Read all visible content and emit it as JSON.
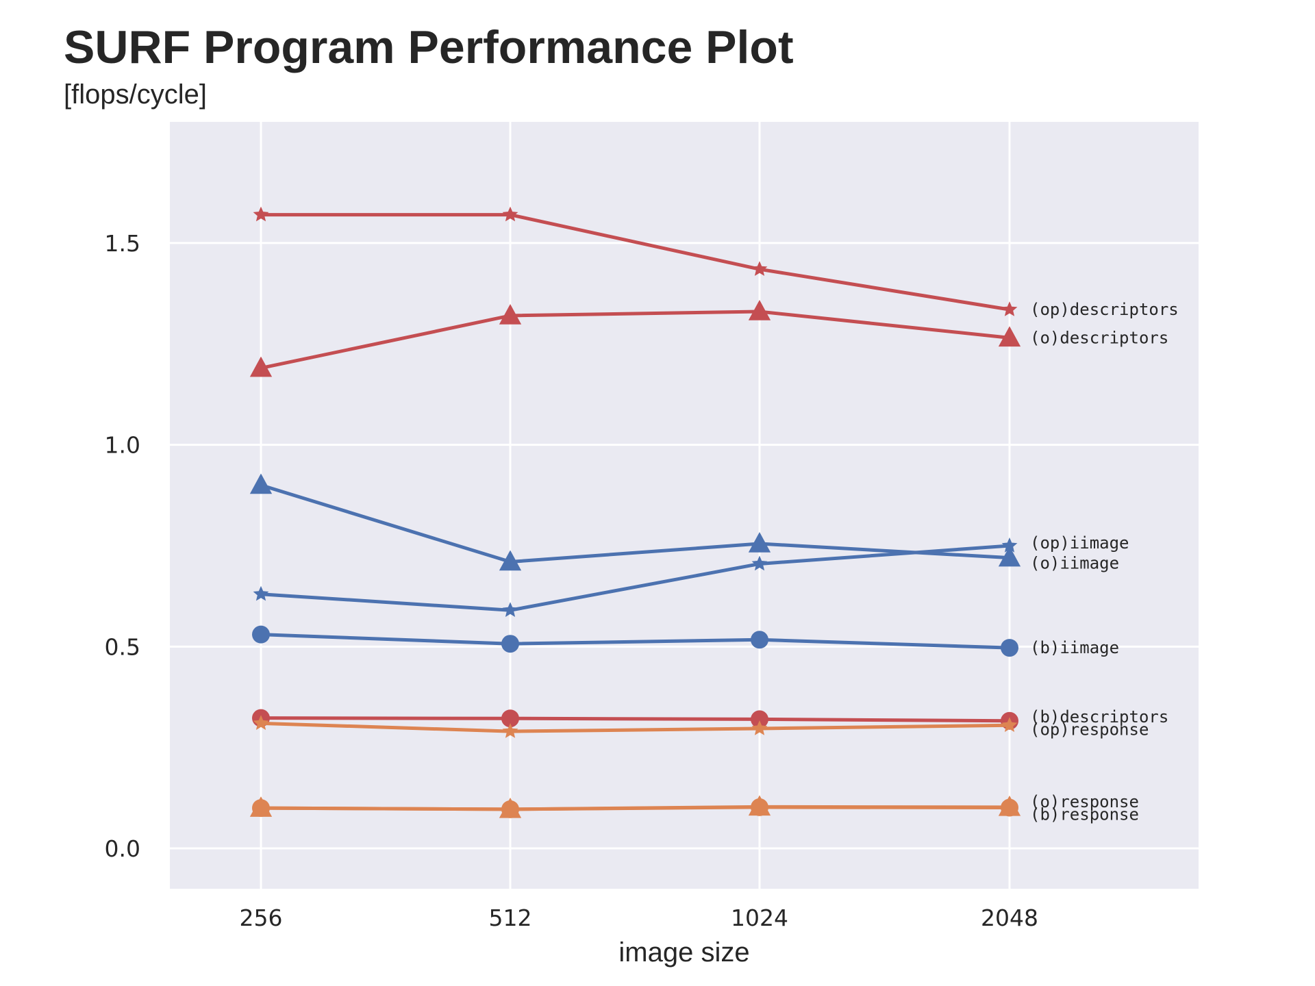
{
  "title": "SURF Program Performance Plot",
  "subtitle": "[flops/cycle]",
  "chart_data": {
    "type": "line",
    "x": [
      "256",
      "512",
      "1024",
      "2048"
    ],
    "xlabel": "image size",
    "ylabel": "",
    "ylim": [
      -0.1,
      1.8
    ],
    "yticks": [
      "0.0",
      "0.5",
      "1.0",
      "1.5"
    ],
    "grid": true,
    "legend": "none; series names printed at the right end of each line",
    "series": [
      {
        "name": "(op)descriptors",
        "color": "#c44e52",
        "marker": "star",
        "values": [
          1.57,
          1.57,
          1.435,
          1.335
        ]
      },
      {
        "name": "(o)descriptors",
        "color": "#c44e52",
        "marker": "triangle",
        "values": [
          1.19,
          1.32,
          1.33,
          1.265
        ]
      },
      {
        "name": "(op)iimage",
        "color": "#4c72b0",
        "marker": "star",
        "values": [
          0.63,
          0.59,
          0.705,
          0.75
        ]
      },
      {
        "name": "(o)iimage",
        "color": "#4c72b0",
        "marker": "triangle",
        "values": [
          0.9,
          0.71,
          0.755,
          0.72
        ]
      },
      {
        "name": "(b)iimage",
        "color": "#4c72b0",
        "marker": "circle",
        "values": [
          0.53,
          0.507,
          0.517,
          0.497
        ]
      },
      {
        "name": "(b)descriptors",
        "color": "#c44e52",
        "marker": "circle",
        "values": [
          0.323,
          0.322,
          0.32,
          0.316
        ]
      },
      {
        "name": "(op)response",
        "color": "#dd8452",
        "marker": "star",
        "values": [
          0.31,
          0.29,
          0.297,
          0.305
        ]
      },
      {
        "name": "(o)response",
        "color": "#dd8452",
        "marker": "triangle",
        "values": [
          0.1,
          0.097,
          0.103,
          0.102
        ]
      },
      {
        "name": "(b)response",
        "color": "#dd8452",
        "marker": "circle",
        "values": [
          0.1,
          0.097,
          0.102,
          0.101
        ]
      }
    ]
  }
}
